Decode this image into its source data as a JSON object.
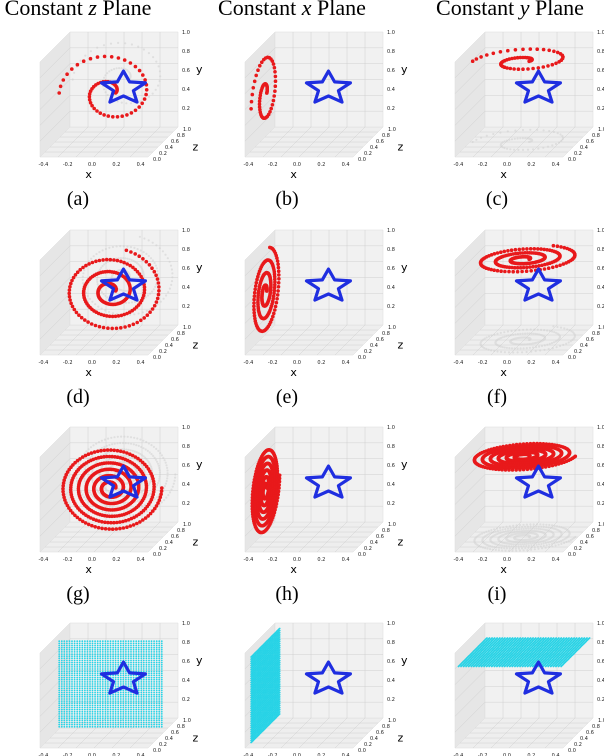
{
  "column_titles": [
    "Constant z Plane",
    "Constant x Plane",
    "Constant y Plane"
  ],
  "column_title_parts": [
    {
      "prefix": "Constant ",
      "var": "z",
      "suffix": " Plane"
    },
    {
      "prefix": "Constant ",
      "var": "x",
      "suffix": " Plane"
    },
    {
      "prefix": "Constant ",
      "var": "y",
      "suffix": " Plane"
    }
  ],
  "panels": [
    {
      "label": "(a)",
      "plane": "z",
      "pattern": "spiral",
      "density": "sparse"
    },
    {
      "label": "(b)",
      "plane": "x",
      "pattern": "spiral",
      "density": "sparse"
    },
    {
      "label": "(c)",
      "plane": "y",
      "pattern": "spiral",
      "density": "sparse"
    },
    {
      "label": "(d)",
      "plane": "z",
      "pattern": "spiral",
      "density": "medium"
    },
    {
      "label": "(e)",
      "plane": "x",
      "pattern": "spiral",
      "density": "medium"
    },
    {
      "label": "(f)",
      "plane": "y",
      "pattern": "spiral",
      "density": "medium"
    },
    {
      "label": "(g)",
      "plane": "z",
      "pattern": "spiral",
      "density": "dense"
    },
    {
      "label": "(h)",
      "plane": "x",
      "pattern": "spiral",
      "density": "dense"
    },
    {
      "label": "(i)",
      "plane": "y",
      "pattern": "spiral",
      "density": "dense"
    },
    {
      "label": "",
      "plane": "z",
      "pattern": "grid",
      "density": "full"
    },
    {
      "label": "",
      "plane": "x",
      "pattern": "grid",
      "density": "full"
    },
    {
      "label": "",
      "plane": "y",
      "pattern": "grid",
      "density": "full"
    }
  ],
  "axes": {
    "x_label": "x",
    "y_label": "y",
    "z_label": "z",
    "x_ticks": [
      "-0.4",
      "-0.2",
      "0.0",
      "0.2",
      "0.4"
    ],
    "y_ticks": [
      "0.2",
      "0.4",
      "0.6",
      "0.8",
      "1.0"
    ],
    "z_ticks": [
      "0.0",
      "0.2",
      "0.4",
      "0.6",
      "0.8",
      "1.0"
    ]
  },
  "colors": {
    "spiral": "#e8191b",
    "grid": "#27d3e6",
    "star": "#1f2ee0",
    "pane": "#eeeeee",
    "gridline": "#c9c9c9"
  }
}
